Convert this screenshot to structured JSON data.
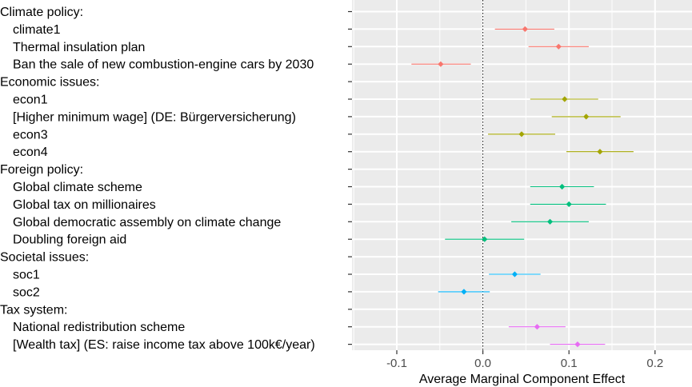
{
  "chart_data": {
    "type": "scatter",
    "title": "",
    "xlabel": "Average Marginal Component Effect",
    "ylabel": "",
    "xlim": [
      -0.24,
      0.24
    ],
    "x_ticks": [
      -0.1,
      0.0,
      0.1,
      0.2
    ],
    "x_tick_labels": [
      "-0.1",
      "0.0",
      "0.1",
      "0.2"
    ],
    "reference_line": {
      "x": 0,
      "style": "dotted"
    },
    "grid": true,
    "legend": "none",
    "rows": [
      {
        "label": "Climate policy:",
        "header": true
      },
      {
        "label": "climate1",
        "group": "climate",
        "estimate": 0.049,
        "ci": [
          0.014,
          0.083
        ]
      },
      {
        "label": "Thermal insulation plan",
        "group": "climate",
        "estimate": 0.088,
        "ci": [
          0.053,
          0.123
        ]
      },
      {
        "label": "Ban the sale of new combustion-engine cars by 2030",
        "group": "climate",
        "estimate": -0.049,
        "ci": [
          -0.083,
          -0.014
        ]
      },
      {
        "label": "Economic issues:",
        "header": true
      },
      {
        "label": "econ1",
        "group": "econ",
        "estimate": 0.095,
        "ci": [
          0.055,
          0.134
        ]
      },
      {
        "label": "[Higher minimum wage] (DE: Bürgerversicherung)",
        "group": "econ",
        "estimate": 0.12,
        "ci": [
          0.08,
          0.16
        ]
      },
      {
        "label": "econ3",
        "group": "econ",
        "estimate": 0.045,
        "ci": [
          0.006,
          0.084
        ]
      },
      {
        "label": "econ4",
        "group": "econ",
        "estimate": 0.136,
        "ci": [
          0.097,
          0.175
        ]
      },
      {
        "label": "Foreign policy:",
        "header": true
      },
      {
        "label": "Global climate scheme",
        "group": "foreign",
        "estimate": 0.092,
        "ci": [
          0.055,
          0.129
        ]
      },
      {
        "label": "Global tax on millionaires",
        "group": "foreign",
        "estimate": 0.1,
        "ci": [
          0.055,
          0.143
        ]
      },
      {
        "label": "Global democratic assembly on climate change",
        "group": "foreign",
        "estimate": 0.078,
        "ci": [
          0.033,
          0.123
        ]
      },
      {
        "label": "Doubling foreign aid",
        "group": "foreign",
        "estimate": 0.002,
        "ci": [
          -0.044,
          0.048
        ]
      },
      {
        "label": "Societal issues:",
        "header": true
      },
      {
        "label": "soc1",
        "group": "soc",
        "estimate": 0.037,
        "ci": [
          0.007,
          0.067
        ]
      },
      {
        "label": "soc2",
        "group": "soc",
        "estimate": -0.022,
        "ci": [
          -0.052,
          0.008
        ]
      },
      {
        "label": "Tax system:",
        "header": true
      },
      {
        "label": "National redistribution scheme",
        "group": "tax",
        "estimate": 0.063,
        "ci": [
          0.03,
          0.096
        ]
      },
      {
        "label": "[Wealth tax] (ES: raise income tax above 100k€/year)",
        "group": "tax",
        "estimate": 0.11,
        "ci": [
          0.078,
          0.142
        ]
      }
    ],
    "group_colors": {
      "climate": "#F8766D",
      "econ": "#A3A500",
      "foreign": "#00BF7D",
      "soc": "#00B0F6",
      "tax": "#E76BF3"
    },
    "panel_background": "#EBEBEB",
    "grid_color": "#FFFFFF"
  }
}
